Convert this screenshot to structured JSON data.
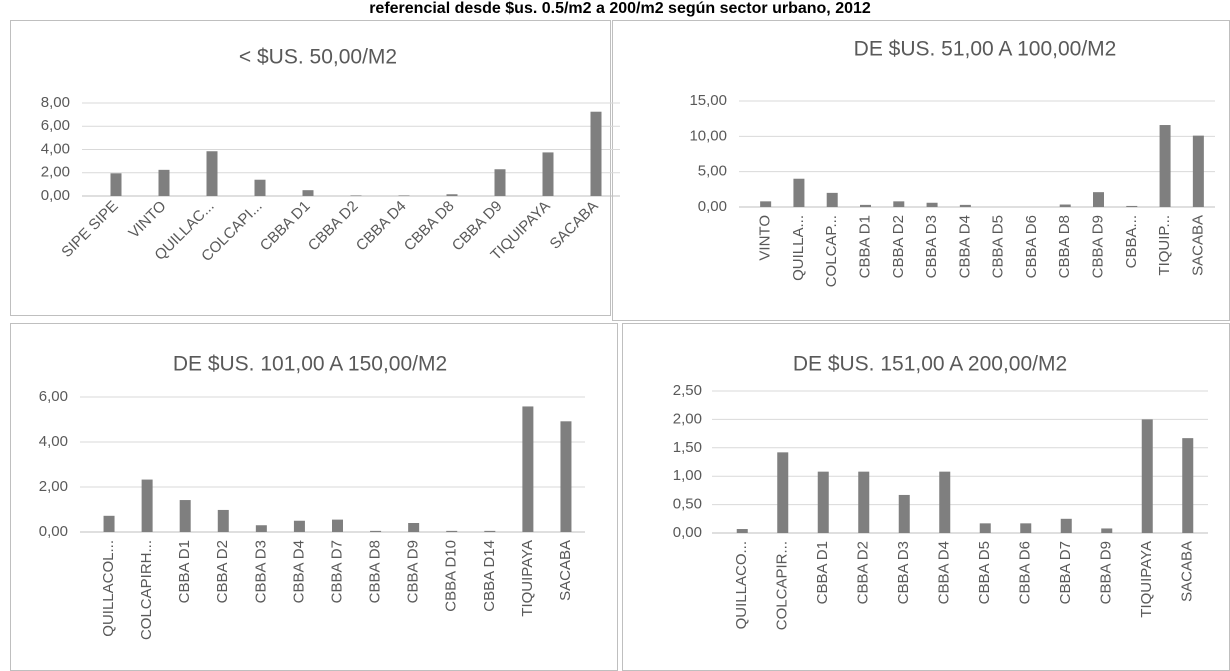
{
  "heading": "referencial desde $us. 0.5/m2 a 200/m2 según sector urbano, 2012",
  "chart_data": [
    {
      "type": "bar",
      "title": "< $US. 50,00/M2",
      "color": "#7f7f7f",
      "grid": true,
      "categories": [
        "SIPE SIPE",
        "VINTO",
        "QUILLAC...",
        "COLCAPI...",
        "CBBA D1",
        "CBBA D2",
        "CBBA D4",
        "CBBA D8",
        "CBBA D9",
        "TIQUIPAYA",
        "SACABA"
      ],
      "values": [
        1.95,
        2.25,
        3.85,
        1.4,
        0.5,
        0.05,
        0.05,
        0.15,
        2.3,
        3.75,
        7.25
      ],
      "ylim": [
        0,
        8
      ],
      "yticks": [
        {
          "value": 0,
          "label": "0,00"
        },
        {
          "value": 2,
          "label": "2,00"
        },
        {
          "value": 4,
          "label": "4,00"
        },
        {
          "value": 6,
          "label": "6,00"
        },
        {
          "value": 8,
          "label": "8,00"
        }
      ]
    },
    {
      "type": "bar",
      "title": "DE $US. 51,00 A 100,00/M2",
      "color": "#7f7f7f",
      "grid": true,
      "categories": [
        "VINTO",
        "QUILLA...",
        "COLCAP...",
        "CBBA D1",
        "CBBA D2",
        "CBBA D3",
        "CBBA D4",
        "CBBA D5",
        "CBBA D6",
        "CBBA D8",
        "CBBA D9",
        "CBBA...",
        "TIQUIP...",
        "SACABA"
      ],
      "values": [
        0.8,
        4.0,
        2.0,
        0.3,
        0.8,
        0.6,
        0.3,
        0,
        0,
        0.35,
        2.1,
        0.15,
        11.6,
        10.1
      ],
      "ylim": [
        0,
        15
      ],
      "yticks": [
        {
          "value": 0,
          "label": "0,00"
        },
        {
          "value": 5,
          "label": "5,00"
        },
        {
          "value": 10,
          "label": "10,00"
        },
        {
          "value": 15,
          "label": "15,00"
        }
      ]
    },
    {
      "type": "bar",
      "title": "DE $US. 101,00 A 150,00/M2",
      "color": "#7f7f7f",
      "grid": true,
      "categories": [
        "QUILLACOL...",
        "COLCAPIRH...",
        "CBBA D1",
        "CBBA D2",
        "CBBA D3",
        "CBBA D4",
        "CBBA D7",
        "CBBA D8",
        "CBBA D9",
        "CBBA D10",
        "CBBA D14",
        "TIQUIPAYA",
        "SACABA"
      ],
      "values": [
        0.72,
        2.33,
        1.42,
        0.98,
        0.3,
        0.5,
        0.55,
        0.05,
        0.4,
        0.05,
        0.05,
        5.58,
        4.92
      ],
      "ylim": [
        0,
        6
      ],
      "yticks": [
        {
          "value": 0,
          "label": "0,00"
        },
        {
          "value": 2,
          "label": "2,00"
        },
        {
          "value": 4,
          "label": "4,00"
        },
        {
          "value": 6,
          "label": "6,00"
        }
      ]
    },
    {
      "type": "bar",
      "title": "DE $US. 151,00 A 200,00/M2",
      "color": "#7f7f7f",
      "grid": true,
      "categories": [
        "QUILLACO...",
        "COLCAPIR...",
        "CBBA D1",
        "CBBA D2",
        "CBBA D3",
        "CBBA D4",
        "CBBA D5",
        "CBBA D6",
        "CBBA D7",
        "CBBA D9",
        "TIQUIPAYA",
        "SACABA"
      ],
      "values": [
        0.07,
        1.42,
        1.08,
        1.08,
        0.67,
        1.08,
        0.17,
        0.17,
        0.25,
        0.08,
        2.0,
        1.67
      ],
      "ylim": [
        0,
        2.5
      ],
      "yticks": [
        {
          "value": 0,
          "label": "0,00"
        },
        {
          "value": 0.5,
          "label": "0,50"
        },
        {
          "value": 1,
          "label": "1,00"
        },
        {
          "value": 1.5,
          "label": "1,50"
        },
        {
          "value": 2,
          "label": "2,00"
        },
        {
          "value": 2.5,
          "label": "2,50"
        }
      ]
    }
  ]
}
